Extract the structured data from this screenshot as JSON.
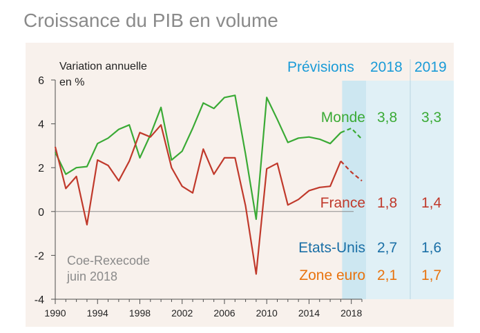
{
  "chart_data": {
    "type": "line",
    "title": "Croissance du PIB en volume",
    "ylabel": [
      "Variation annuelle",
      "en %"
    ],
    "ylim": [
      -4,
      6
    ],
    "yticks": [
      -4,
      -2,
      0,
      2,
      4,
      6
    ],
    "xlim": [
      1990,
      2019
    ],
    "xticks": [
      1990,
      1994,
      1998,
      2002,
      2006,
      2010,
      2014,
      2018
    ],
    "source": [
      "Coe-Rexecode",
      "juin 2018"
    ],
    "forecast": {
      "label": "Prévisions",
      "years": [
        "2018",
        "2019"
      ],
      "start": 2017
    },
    "series": [
      {
        "name": "Monde",
        "color": "#3aaa35",
        "x": [
          1990,
          1991,
          1992,
          1993,
          1994,
          1995,
          1996,
          1997,
          1998,
          1999,
          2000,
          2001,
          2002,
          2003,
          2004,
          2005,
          2006,
          2007,
          2008,
          2009,
          2010,
          2011,
          2012,
          2013,
          2014,
          2015,
          2016,
          2017
        ],
        "values": [
          2.7,
          1.7,
          2.0,
          2.05,
          3.1,
          3.35,
          3.75,
          3.95,
          2.45,
          3.5,
          4.75,
          2.35,
          2.75,
          3.8,
          4.95,
          4.7,
          5.2,
          5.3,
          2.6,
          -0.35,
          5.2,
          4.2,
          3.15,
          3.35,
          3.4,
          3.3,
          3.1,
          3.6
        ],
        "forecast_x": [
          2017,
          2018,
          2019
        ],
        "forecast_values": [
          3.6,
          3.8,
          3.3
        ]
      },
      {
        "name": "France",
        "color": "#c0392b",
        "x": [
          1990,
          1991,
          1992,
          1993,
          1994,
          1995,
          1996,
          1997,
          1998,
          1999,
          2000,
          2001,
          2002,
          2003,
          2004,
          2005,
          2006,
          2007,
          2008,
          2009,
          2010,
          2011,
          2012,
          2013,
          2014,
          2015,
          2016,
          2017
        ],
        "values": [
          2.95,
          1.05,
          1.6,
          -0.6,
          2.35,
          2.1,
          1.4,
          2.3,
          3.6,
          3.4,
          3.95,
          2.0,
          1.15,
          0.85,
          2.85,
          1.7,
          2.45,
          2.45,
          0.25,
          -2.85,
          1.95,
          2.2,
          0.3,
          0.55,
          0.95,
          1.1,
          1.15,
          2.3
        ],
        "forecast_x": [
          2017,
          2018,
          2019
        ],
        "forecast_values": [
          2.3,
          1.8,
          1.4
        ]
      }
    ],
    "forecast_table": [
      {
        "name": "Monde",
        "color": "#3aaa35",
        "v2018": "3,8",
        "v2019": "3,3"
      },
      {
        "name": "France",
        "color": "#c0392b",
        "v2018": "1,8",
        "v2019": "1,4"
      },
      {
        "name": "Etats-Unis",
        "color": "#1a6fa6",
        "v2018": "2,7",
        "v2019": "1,6"
      },
      {
        "name": "Zone euro",
        "color": "#e8730e",
        "v2018": "2,1",
        "v2019": "1,7"
      }
    ]
  },
  "colors": {
    "panel_background": "#f8f1ec",
    "forecast_band": "#e0f0f6",
    "forecast_band_dark": "#cde7f1",
    "forecast_header": "#1a9bd7",
    "axis": "#4d4d4d",
    "zero_line": "#8c8c8c",
    "source_text": "#8a8a8a"
  }
}
